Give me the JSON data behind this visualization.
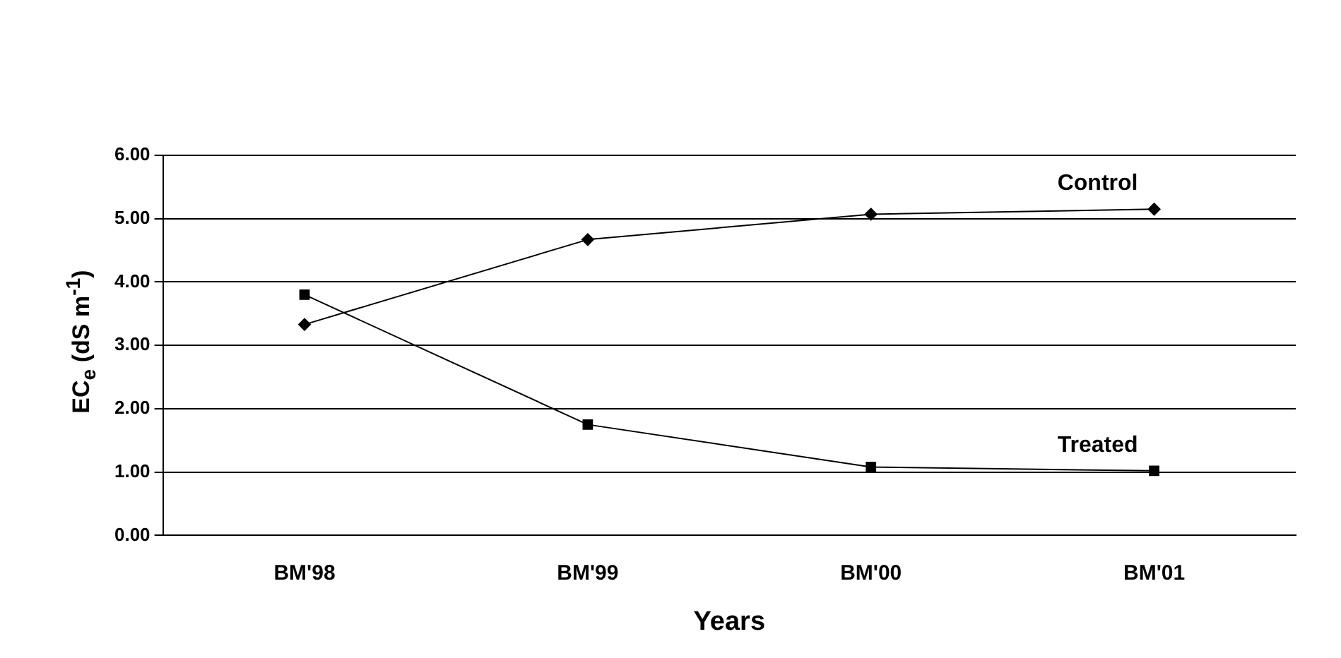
{
  "chart_data": {
    "type": "line",
    "xlabel": "Years",
    "ylabel": "EC$_{e}$ (dS m$^{-1}$)",
    "categories": [
      "BM'98",
      "BM'99",
      "BM'00",
      "BM'01"
    ],
    "series": [
      {
        "name": "Control",
        "color": "#000000",
        "marker": "diamond",
        "values": [
          3.33,
          4.67,
          5.07,
          5.15
        ]
      },
      {
        "name": "Treated",
        "color": "#000000",
        "marker": "square",
        "values": [
          3.8,
          1.75,
          1.08,
          1.02
        ]
      }
    ],
    "ylim": [
      0,
      6
    ],
    "yticks": [
      {
        "value": 0,
        "label": "0.00"
      },
      {
        "value": 1,
        "label": "1.00"
      },
      {
        "value": 2,
        "label": "2.00"
      },
      {
        "value": 3,
        "label": "3.00"
      },
      {
        "value": 4,
        "label": "4.00"
      },
      {
        "value": 5,
        "label": "5.00"
      },
      {
        "value": 6,
        "label": "6.00"
      }
    ],
    "grid": "y",
    "legend": false,
    "line_style": "solid"
  }
}
